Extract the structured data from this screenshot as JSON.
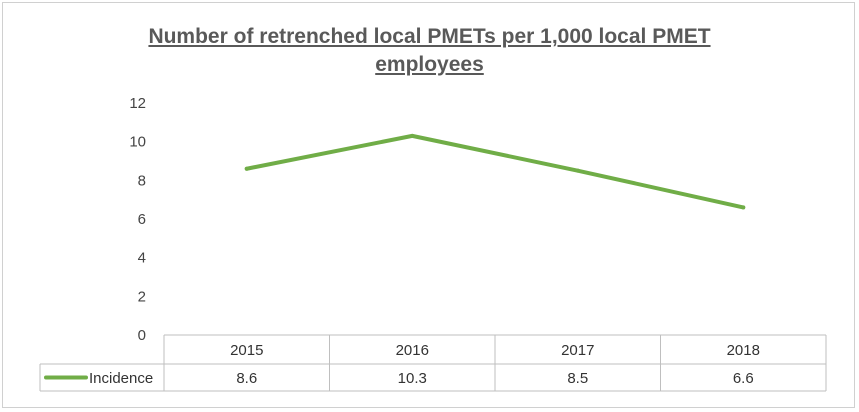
{
  "chart_data": {
    "type": "line",
    "title_line1": "Number of retrenched local PMETs per 1,000 local PMET",
    "title_line2": "employees",
    "categories": [
      "2015",
      "2016",
      "2017",
      "2018"
    ],
    "series": [
      {
        "name": "Incidence",
        "values": [
          8.6,
          10.3,
          8.5,
          6.6
        ],
        "color": "#70ad47"
      }
    ],
    "value_labels": [
      "8.6",
      "10.3",
      "8.5",
      "6.6"
    ],
    "y_ticks": [
      "0",
      "2",
      "4",
      "6",
      "8",
      "10",
      "12"
    ],
    "ylim": [
      0,
      12
    ],
    "grid": false,
    "legend": "data-table",
    "colors": {
      "title": "#595959",
      "text": "#444444",
      "table_border": "#bfbfbf"
    }
  }
}
